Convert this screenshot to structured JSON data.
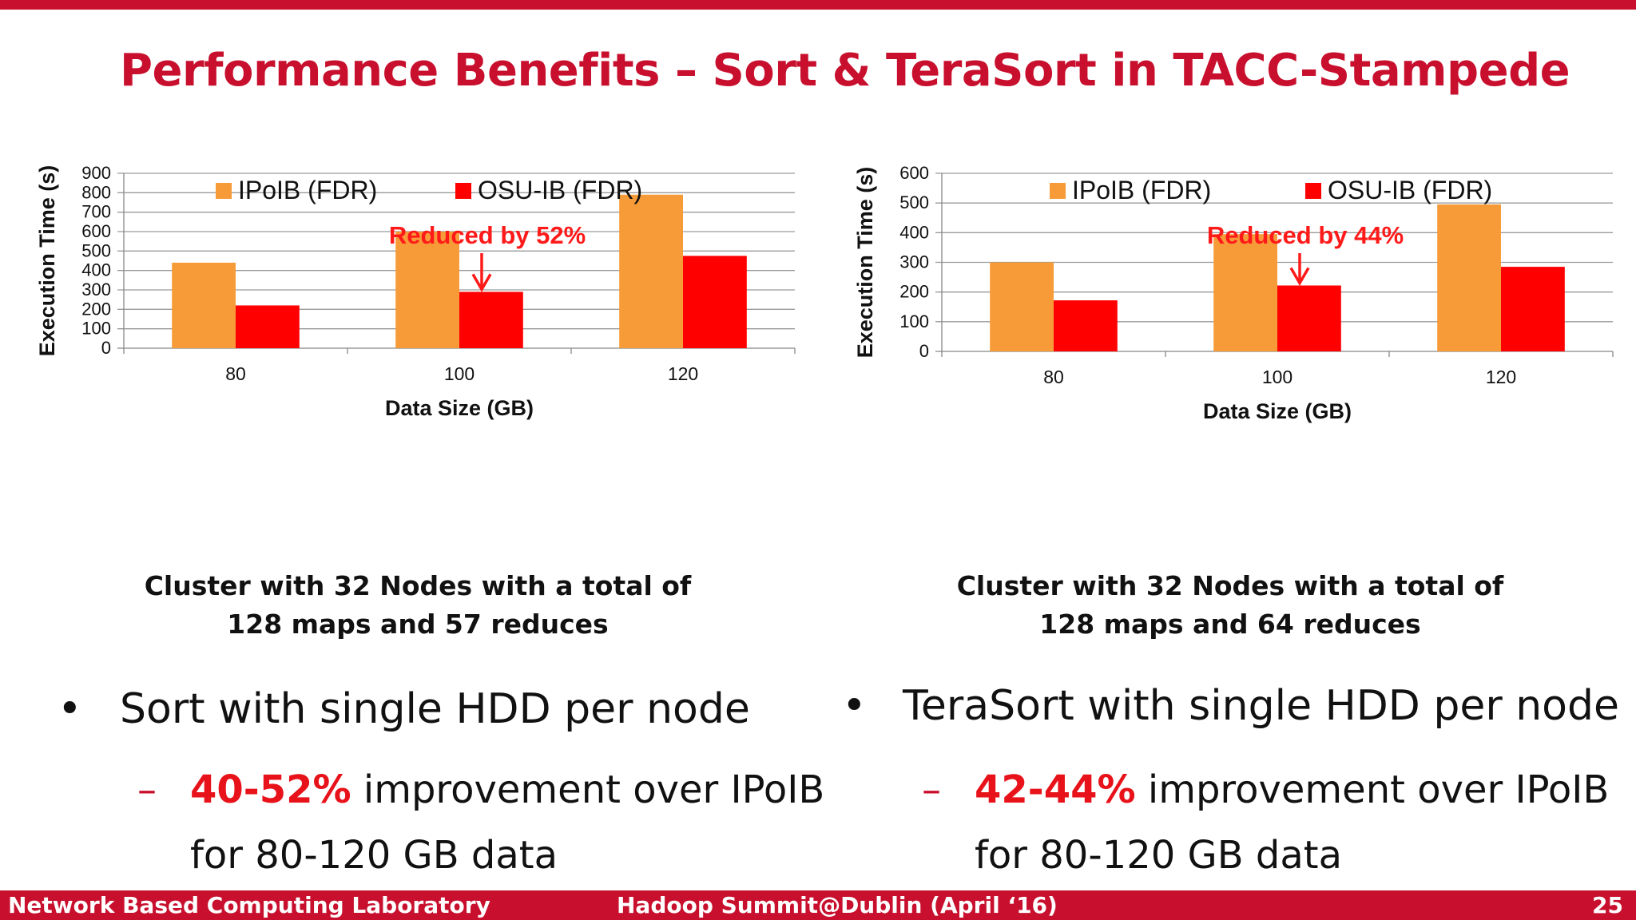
{
  "slide": {
    "title": "Performance Benefits – Sort & TeraSort in TACC-Stampede",
    "footer_left": "Network Based Computing Laboratory",
    "footer_center": "Hadoop Summit@Dublin (April ‘16)",
    "footer_right": "25",
    "accent_color": "#c8102e"
  },
  "chart_data": [
    {
      "type": "bar",
      "categories": [
        "80",
        "100",
        "120"
      ],
      "series": [
        {
          "name": "IPoIB (FDR)",
          "color": "#f79b38",
          "values": [
            440,
            600,
            790
          ]
        },
        {
          "name": "OSU-IB (FDR)",
          "color": "#ff0000",
          "values": [
            220,
            290,
            475
          ]
        }
      ],
      "ylabel": "Execution Time (s)",
      "xlabel": "Data Size (GB)",
      "ylim": [
        0,
        900
      ],
      "yticks": [
        0,
        100,
        200,
        300,
        400,
        500,
        600,
        700,
        800,
        900
      ],
      "annotation": "Reduced by 52%",
      "grid": true,
      "legend": "top"
    },
    {
      "type": "bar",
      "categories": [
        "80",
        "100",
        "120"
      ],
      "series": [
        {
          "name": "IPoIB (FDR)",
          "color": "#f79b38",
          "values": [
            300,
            395,
            495
          ]
        },
        {
          "name": "OSU-IB (FDR)",
          "color": "#ff0000",
          "values": [
            172,
            222,
            285
          ]
        }
      ],
      "ylabel": "Execution Time (s)",
      "xlabel": "Data Size (GB)",
      "ylim": [
        0,
        600
      ],
      "yticks": [
        0,
        100,
        200,
        300,
        400,
        500,
        600
      ],
      "annotation": "Reduced by 44%",
      "grid": true,
      "legend": "top"
    }
  ],
  "left": {
    "caption_line1": "Cluster with 32 Nodes with a total of",
    "caption_line2": "128 maps and 57 reduces",
    "bullet": "Sort with single HDD per node",
    "sub_highlight": "40-52%",
    "sub_rest": " improvement over IPoIB",
    "sub_line2": "for 80-120 GB data"
  },
  "right": {
    "caption_line1": "Cluster with 32 Nodes with a total of",
    "caption_line2": "128 maps and 64 reduces",
    "bullet": "TeraSort with single HDD per node",
    "sub_highlight": "42-44%",
    "sub_rest": " improvement over IPoIB",
    "sub_line2": "for 80-120 GB data"
  },
  "bullet_glyph": "•",
  "dash_glyph": "–"
}
